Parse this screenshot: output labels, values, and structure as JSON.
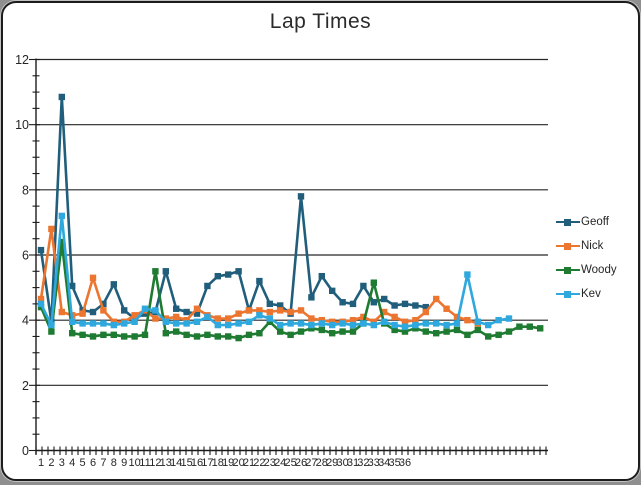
{
  "title": "Lap Times",
  "colors": {
    "grid": "#262626",
    "axis": "#1c1c1c",
    "text": "#262626",
    "background": "#ffffff",
    "frame_border": "#1c1c1c"
  },
  "chart_data": {
    "type": "line",
    "title": "Lap Times",
    "xlabel": "",
    "ylabel": "",
    "ylim": [
      0,
      12
    ],
    "y_ticks": [
      0,
      2,
      4,
      6,
      8,
      10,
      12
    ],
    "grid": "horizontal-major",
    "legend_position": "right",
    "marker": "square",
    "x_tick_labels": [
      "1",
      "2",
      "3",
      "4",
      "5",
      "6",
      "7",
      "8",
      "9",
      "10",
      "11",
      "12",
      "13",
      "14",
      "15",
      "16",
      "17",
      "18",
      "19",
      "20",
      "21",
      "22",
      "23",
      "24",
      "25",
      "26",
      "27",
      "28",
      "29",
      "30",
      "31",
      "32",
      "33",
      "34",
      "35",
      "36"
    ],
    "series": [
      {
        "name": "Geoff",
        "color": "#205E7B",
        "values": [
          6.15,
          3.95,
          10.85,
          5.05,
          4.3,
          4.25,
          4.5,
          5.1,
          4.3,
          4.05,
          4.2,
          4.25,
          5.5,
          4.35,
          4.25,
          4.2,
          5.05,
          5.35,
          5.4,
          5.5,
          4.3,
          5.2,
          4.5,
          4.45,
          4.2,
          7.8,
          4.7,
          5.35,
          4.9,
          4.55,
          4.5,
          5.05,
          4.55,
          4.65,
          4.45,
          4.5,
          4.45,
          4.4
        ]
      },
      {
        "name": "Nick",
        "color": "#EC7530",
        "values": [
          4.65,
          6.8,
          4.25,
          4.15,
          4.2,
          5.3,
          4.3,
          3.95,
          3.95,
          4.15,
          4.3,
          4.05,
          4.05,
          4.1,
          4.0,
          4.35,
          4.15,
          4.05,
          4.05,
          4.2,
          4.3,
          4.3,
          4.25,
          4.3,
          4.25,
          4.3,
          4.05,
          4.0,
          3.95,
          3.95,
          4.0,
          4.1,
          3.95,
          4.25,
          4.1,
          3.95,
          4.0,
          4.25,
          4.65,
          4.35,
          4.1,
          4.0,
          3.9
        ]
      },
      {
        "name": "Woody",
        "color": "#1E7B31",
        "values": [
          4.4,
          3.65,
          6.4,
          3.6,
          3.55,
          3.5,
          3.55,
          3.55,
          3.5,
          3.5,
          3.55,
          5.5,
          3.6,
          3.65,
          3.55,
          3.5,
          3.55,
          3.5,
          3.5,
          3.45,
          3.55,
          3.6,
          3.95,
          3.65,
          3.55,
          3.65,
          3.75,
          3.7,
          3.6,
          3.65,
          3.65,
          3.9,
          5.15,
          3.9,
          3.7,
          3.65,
          3.75,
          3.65,
          3.6,
          3.65,
          3.7,
          3.55,
          3.7,
          3.5,
          3.55,
          3.65,
          3.8,
          3.8,
          3.75
        ]
      },
      {
        "name": "Kev",
        "color": "#2FA8DD",
        "values": [
          4.5,
          3.85,
          7.2,
          3.95,
          3.9,
          3.9,
          3.9,
          3.85,
          3.9,
          3.95,
          4.35,
          4.3,
          3.95,
          3.9,
          3.9,
          3.95,
          4.1,
          3.85,
          3.85,
          3.9,
          3.95,
          4.15,
          4.05,
          3.85,
          3.9,
          3.9,
          3.85,
          3.9,
          3.85,
          3.9,
          3.85,
          3.9,
          3.85,
          3.95,
          3.85,
          3.8,
          3.85,
          3.9,
          3.9,
          3.85,
          3.9,
          5.4,
          3.95,
          3.85,
          4.0,
          4.05
        ]
      }
    ]
  }
}
